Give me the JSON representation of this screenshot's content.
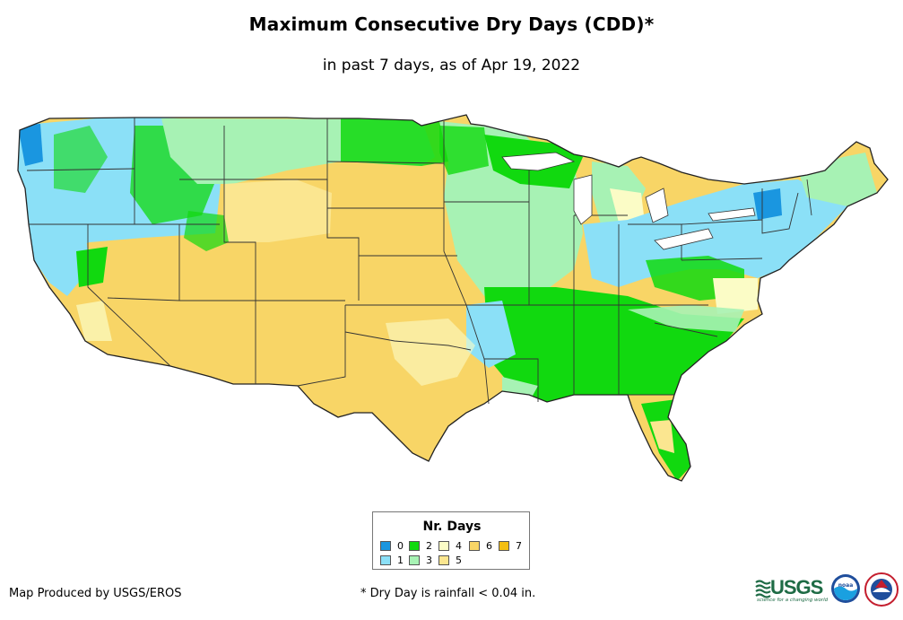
{
  "title": "Maximum Consecutive Dry Days (CDD)*",
  "subtitle": "in past 7 days, as of Apr 19, 2022",
  "legend": {
    "title": "Nr. Days",
    "items": [
      {
        "label": "0",
        "color": "#1a96e0"
      },
      {
        "label": "1",
        "color": "#8be0f7"
      },
      {
        "label": "2",
        "color": "#11d90f"
      },
      {
        "label": "3",
        "color": "#a7f2b4"
      },
      {
        "label": "4",
        "color": "#fbfcc6"
      },
      {
        "label": "5",
        "color": "#fbe690"
      },
      {
        "label": "6",
        "color": "#f8d566"
      },
      {
        "label": "7",
        "color": "#f3be11"
      }
    ]
  },
  "footer": {
    "credit": "Map Produced by USGS/EROS",
    "note": "* Dry Day is rainfall < 0.04 in."
  },
  "logos": {
    "usgs": "USGS",
    "usgs_tagline": "science for a changing world",
    "noaa": "noaa"
  },
  "map": {
    "base_color": "#f8d566",
    "icons": [
      "usgs-logo",
      "noaa-logo",
      "nws-logo"
    ]
  }
}
